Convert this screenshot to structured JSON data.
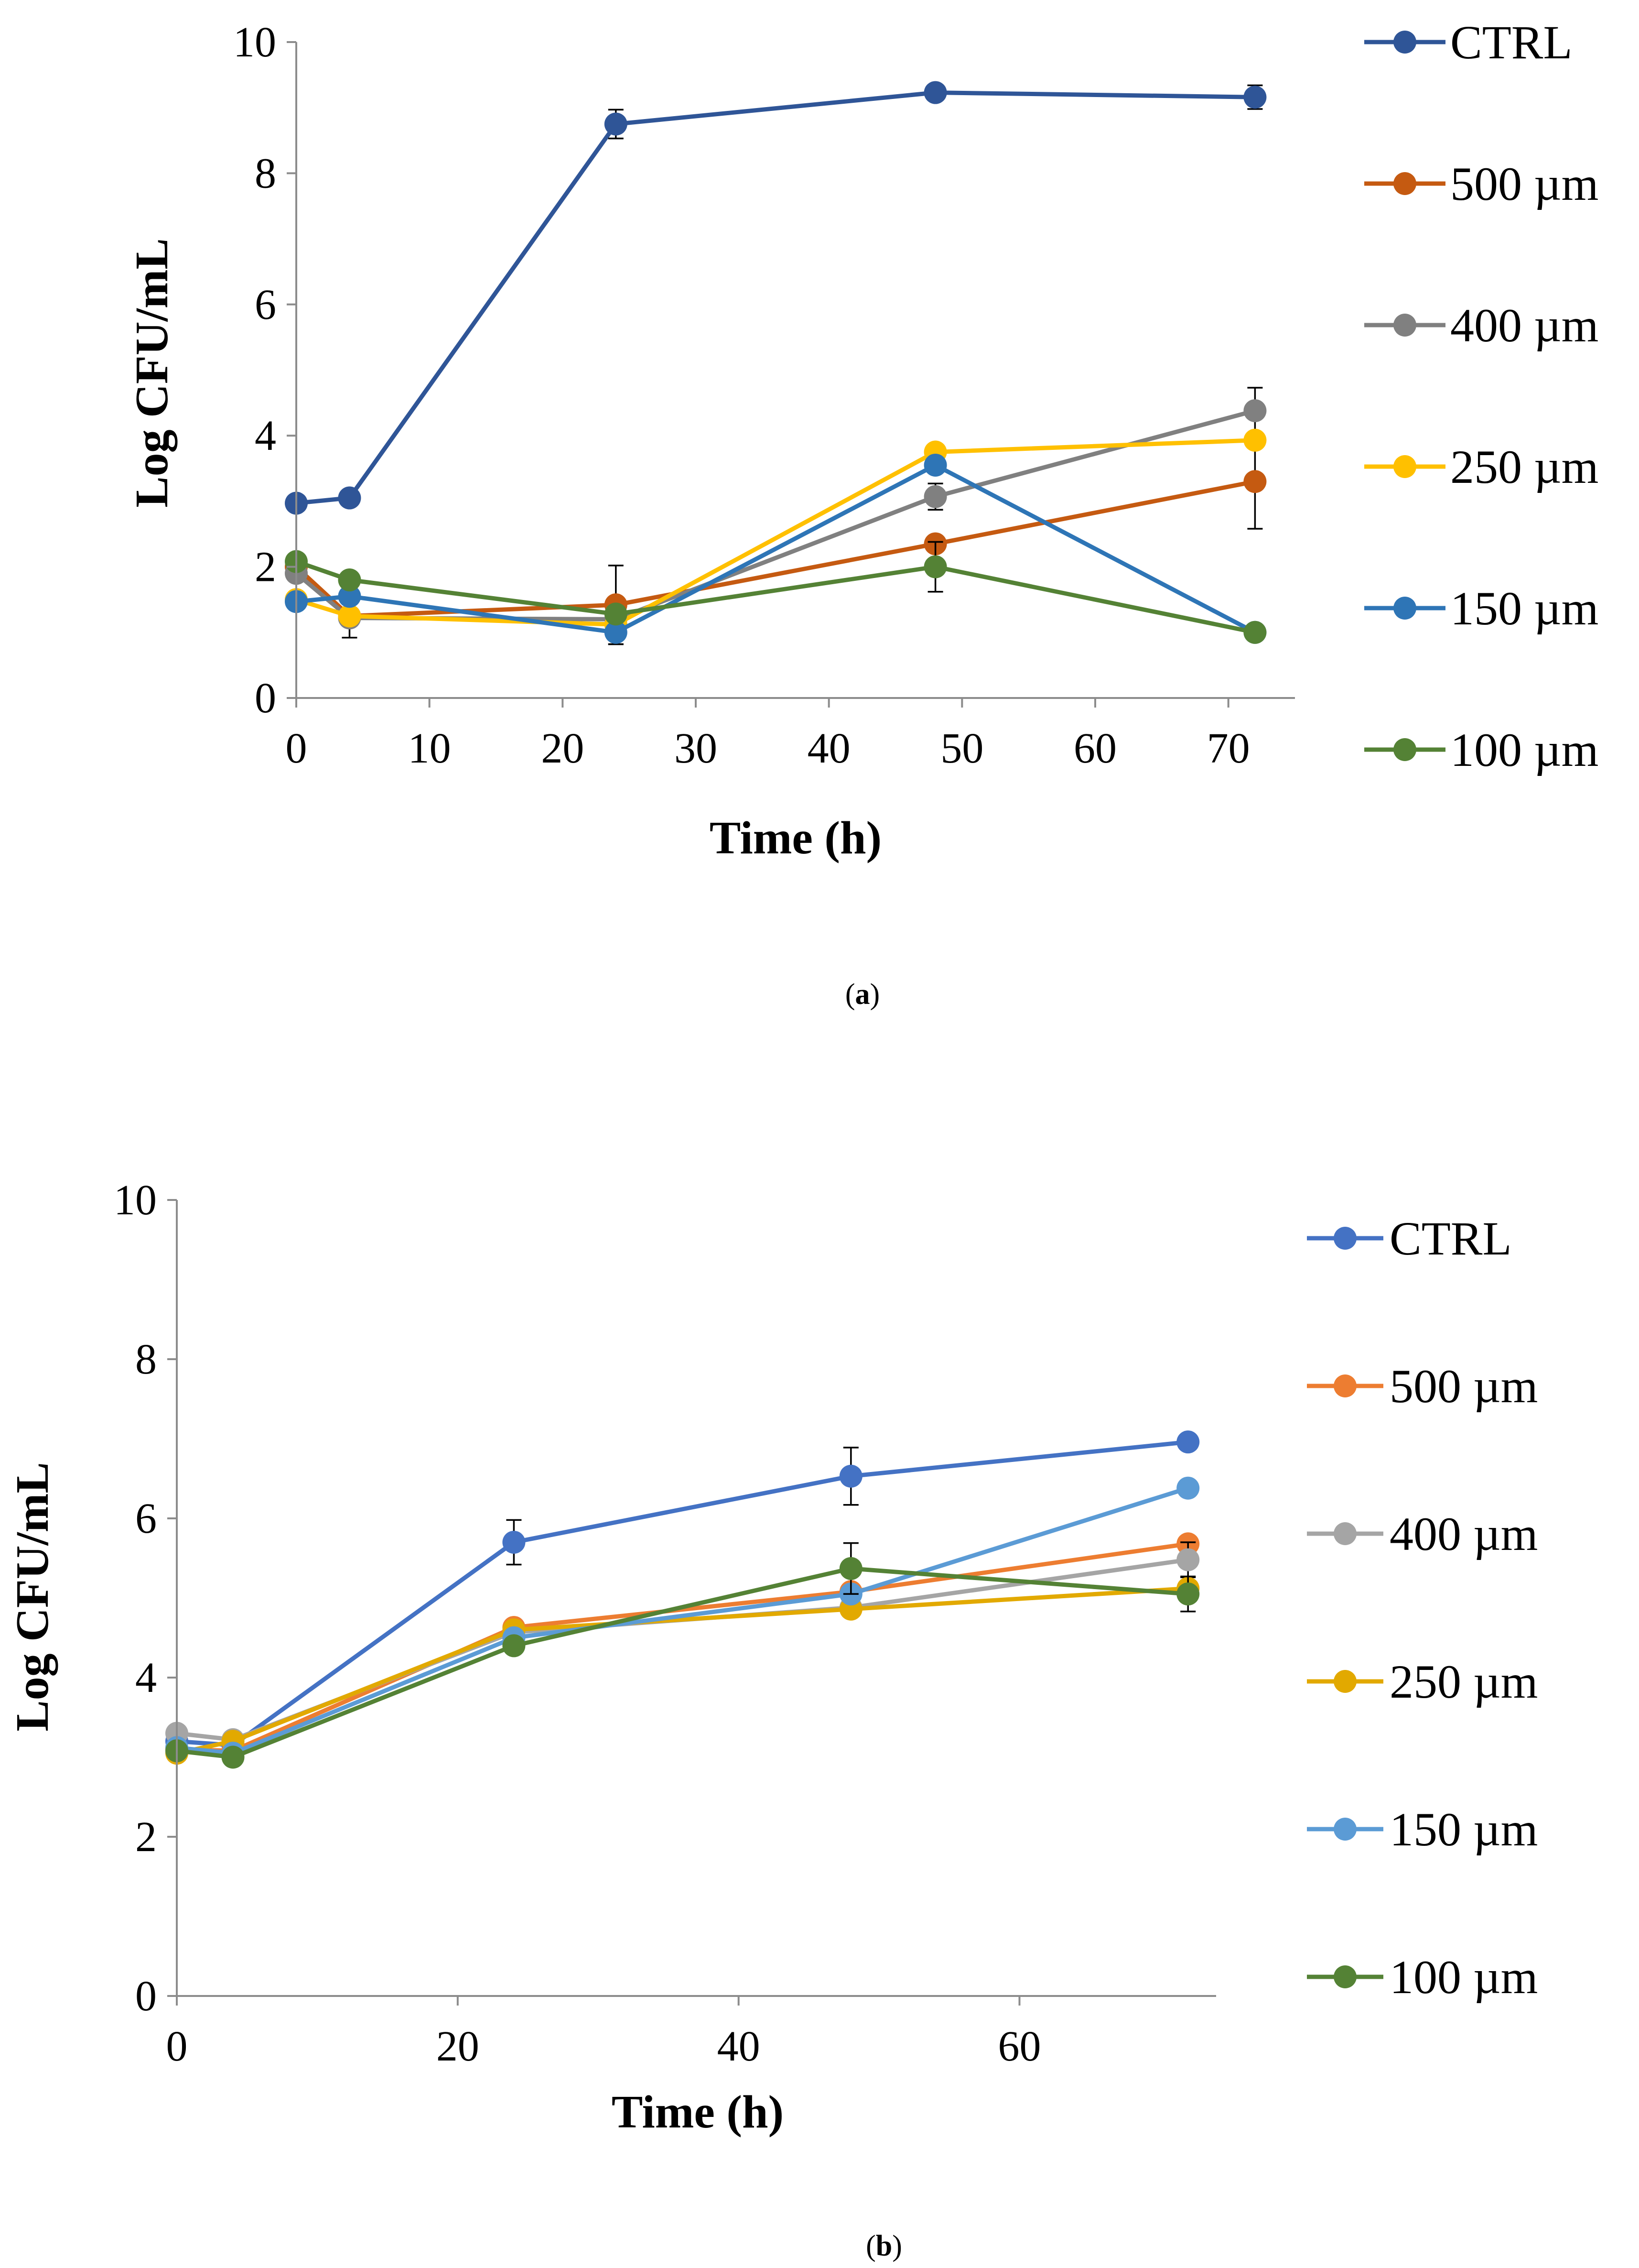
{
  "chart_data": [
    {
      "type": "line",
      "panel_label": "a",
      "xlabel": "Time (h)",
      "ylabel": "Log CFU/mL",
      "xlim": [
        0,
        75
      ],
      "ylim": [
        0,
        10
      ],
      "x_ticks": [
        0,
        10,
        20,
        30,
        40,
        50,
        60,
        70
      ],
      "y_ticks": [
        0,
        2,
        4,
        6,
        8,
        10
      ],
      "grid": false,
      "legend_position": "right",
      "x": [
        0,
        4,
        24,
        48,
        72
      ],
      "series": [
        {
          "name": "CTRL",
          "color": "#2f5597",
          "values": [
            2.97,
            3.05,
            8.75,
            9.23,
            9.16
          ],
          "errors": [
            null,
            null,
            0.22,
            null,
            0.18
          ]
        },
        {
          "name": "500 µm",
          "color": "#c55a11",
          "values": [
            2.0,
            1.25,
            1.42,
            2.35,
            3.3
          ],
          "errors": [
            null,
            null,
            0.6,
            null,
            0.72
          ]
        },
        {
          "name": "400 µm",
          "color": "#808080",
          "values": [
            1.9,
            1.22,
            1.2,
            3.07,
            4.38
          ],
          "errors": [
            null,
            0.3,
            null,
            0.2,
            0.35
          ]
        },
        {
          "name": "250 µm",
          "color": "#ffc000",
          "values": [
            1.5,
            1.25,
            1.12,
            3.75,
            3.93
          ],
          "errors": [
            null,
            null,
            null,
            null,
            null
          ]
        },
        {
          "name": "150 µm",
          "color": "#2e75b6",
          "values": [
            1.47,
            1.55,
            1.0,
            3.55,
            1.0
          ],
          "errors": [
            null,
            null,
            0.18,
            null,
            null
          ]
        },
        {
          "name": "100 µm",
          "color": "#548235",
          "values": [
            2.08,
            1.8,
            1.28,
            2.0,
            1.0
          ],
          "errors": [
            null,
            null,
            null,
            0.38,
            null
          ]
        }
      ]
    },
    {
      "type": "line",
      "panel_label": "b",
      "xlabel": "Time (h)",
      "ylabel": "Log CFU/mL",
      "xlim": [
        0,
        74
      ],
      "ylim": [
        0,
        10
      ],
      "x_ticks": [
        0,
        20,
        40,
        60
      ],
      "y_ticks": [
        0,
        2,
        4,
        6,
        8,
        10
      ],
      "grid": false,
      "legend_position": "right",
      "x": [
        0,
        4,
        24,
        48,
        72
      ],
      "series": [
        {
          "name": "CTRL",
          "color": "#4472c4",
          "values": [
            3.2,
            3.15,
            5.7,
            6.53,
            6.96
          ],
          "errors": [
            null,
            null,
            0.28,
            0.36,
            null
          ]
        },
        {
          "name": "500 µm",
          "color": "#ed7d31",
          "values": [
            3.1,
            3.08,
            4.63,
            5.08,
            5.68
          ],
          "errors": [
            null,
            null,
            null,
            null,
            null
          ]
        },
        {
          "name": "400 µm",
          "color": "#a5a5a5",
          "values": [
            3.3,
            3.22,
            4.57,
            4.88,
            5.48
          ],
          "errors": [
            null,
            null,
            null,
            null,
            0.22
          ]
        },
        {
          "name": "250 µm",
          "color": "#e2a900",
          "values": [
            3.05,
            3.2,
            4.6,
            4.86,
            5.12
          ],
          "errors": [
            null,
            null,
            null,
            null,
            null
          ]
        },
        {
          "name": "150 µm",
          "color": "#5b9bd5",
          "values": [
            3.12,
            3.05,
            4.5,
            5.05,
            6.38
          ],
          "errors": [
            null,
            null,
            null,
            null,
            null
          ]
        },
        {
          "name": "100 µm",
          "color": "#548235",
          "values": [
            3.08,
            3.0,
            4.4,
            5.37,
            5.05
          ],
          "errors": [
            null,
            null,
            null,
            0.32,
            0.22
          ]
        }
      ]
    }
  ]
}
